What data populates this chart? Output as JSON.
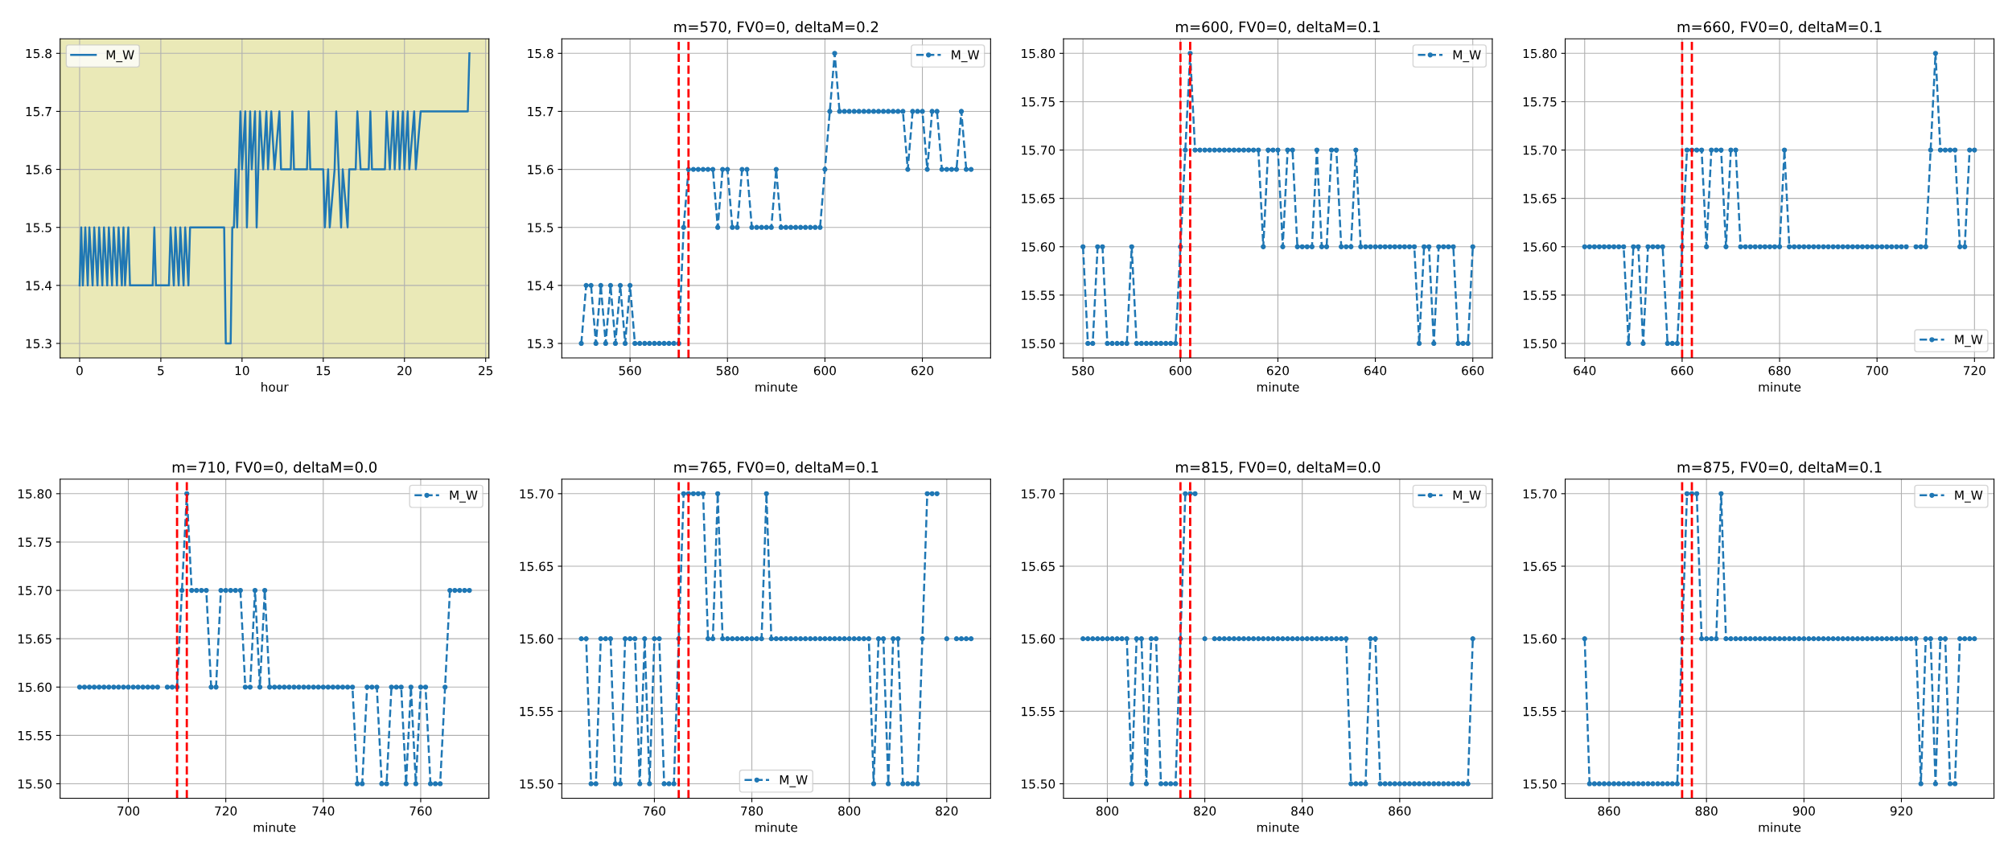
{
  "chart_data": [
    {
      "type": "line",
      "xlabel": "hour",
      "xlim": [
        -1.2,
        25.2
      ],
      "xticks": [
        0,
        5,
        10,
        15,
        20,
        25
      ],
      "ylim": [
        15.275,
        15.825
      ],
      "yticks": [
        15.3,
        15.4,
        15.5,
        15.6,
        15.7,
        15.8
      ],
      "grid": true,
      "legend": "top left",
      "marker": "none",
      "line_style": "solid",
      "x": [
        0,
        0.1,
        0.2,
        0.35,
        0.5,
        0.6,
        0.8,
        0.9,
        1.1,
        1.2,
        1.4,
        1.5,
        1.7,
        1.8,
        2.0,
        2.1,
        2.3,
        2.4,
        2.6,
        2.7,
        2.8,
        3.0,
        3.1,
        4.5,
        4.6,
        4.7,
        5.5,
        5.6,
        5.8,
        5.9,
        6.1,
        6.2,
        6.4,
        6.5,
        6.7,
        6.8,
        8.9,
        9.0,
        9.3,
        9.4,
        9.5,
        9.6,
        9.7,
        9.8,
        9.9,
        10.0,
        10.2,
        10.3,
        10.5,
        10.6,
        10.8,
        10.9,
        11.1,
        11.3,
        11.5,
        11.6,
        11.8,
        12.0,
        12.3,
        12.4,
        13.0,
        13.1,
        13.2,
        14.0,
        14.1,
        14.2,
        15.0,
        15.1,
        15.3,
        15.4,
        15.7,
        15.8,
        16.1,
        16.2,
        16.5,
        16.6,
        17.0,
        17.1,
        17.3,
        17.8,
        17.9,
        18.0,
        18.8,
        18.9,
        19.1,
        19.3,
        19.4,
        19.6,
        19.7,
        19.9,
        20.0,
        20.2,
        20.3,
        20.6,
        20.7,
        21.0,
        23.9,
        24.0
      ],
      "series": [
        {
          "name": "M_W",
          "color": "#1f77b4",
          "values": [
            15.4,
            15.5,
            15.4,
            15.5,
            15.4,
            15.5,
            15.4,
            15.5,
            15.4,
            15.5,
            15.4,
            15.5,
            15.4,
            15.5,
            15.4,
            15.5,
            15.4,
            15.5,
            15.4,
            15.5,
            15.4,
            15.5,
            15.4,
            15.4,
            15.5,
            15.4,
            15.4,
            15.5,
            15.4,
            15.5,
            15.4,
            15.5,
            15.4,
            15.5,
            15.4,
            15.5,
            15.5,
            15.3,
            15.3,
            15.5,
            15.5,
            15.6,
            15.5,
            15.6,
            15.7,
            15.6,
            15.7,
            15.5,
            15.7,
            15.6,
            15.7,
            15.5,
            15.7,
            15.6,
            15.7,
            15.6,
            15.7,
            15.6,
            15.7,
            15.6,
            15.6,
            15.7,
            15.6,
            15.6,
            15.7,
            15.6,
            15.6,
            15.5,
            15.6,
            15.5,
            15.6,
            15.7,
            15.5,
            15.6,
            15.5,
            15.6,
            15.6,
            15.7,
            15.6,
            15.6,
            15.7,
            15.6,
            15.6,
            15.7,
            15.6,
            15.7,
            15.6,
            15.7,
            15.6,
            15.7,
            15.6,
            15.7,
            15.6,
            15.7,
            15.6,
            15.7,
            15.7,
            15.8
          ]
        }
      ]
    },
    {
      "type": "line",
      "title": "m=570, FV0=0, deltaM=0.2",
      "xlabel": "minute",
      "xlim": [
        546,
        634
      ],
      "xticks": [
        560,
        580,
        600,
        620
      ],
      "ylim": [
        15.275,
        15.825
      ],
      "yticks": [
        15.3,
        15.4,
        15.5,
        15.6,
        15.7,
        15.8
      ],
      "grid": true,
      "legend": "top right",
      "marker": "circle",
      "line_style": "dashed",
      "ref_lines": [
        {
          "axis": "x",
          "value": 570,
          "color": "#ff0000",
          "line_style": "dashed"
        },
        {
          "axis": "x",
          "value": 572,
          "color": "#ff0000",
          "line_style": "dashed"
        }
      ],
      "x": [
        550,
        551,
        552,
        553,
        554,
        555,
        556,
        557,
        558,
        559,
        560,
        561,
        562,
        563,
        564,
        565,
        566,
        567,
        568,
        569,
        570,
        571,
        572,
        573,
        574,
        575,
        576,
        577,
        578,
        579,
        580,
        581,
        582,
        583,
        584,
        585,
        586,
        587,
        588,
        589,
        590,
        591,
        592,
        593,
        594,
        595,
        596,
        597,
        598,
        599,
        600,
        601,
        602,
        603,
        604,
        605,
        606,
        607,
        608,
        609,
        610,
        611,
        612,
        613,
        614,
        615,
        616,
        617,
        618,
        619,
        620,
        621,
        622,
        623,
        624,
        625,
        626,
        627,
        628,
        629,
        630
      ],
      "series": [
        {
          "name": "M_W",
          "color": "#1f77b4",
          "values": [
            15.3,
            15.4,
            15.4,
            15.3,
            15.4,
            15.3,
            15.4,
            15.3,
            15.4,
            15.3,
            15.4,
            15.3,
            15.3,
            15.3,
            15.3,
            15.3,
            15.3,
            15.3,
            15.3,
            15.3,
            15.3,
            15.5,
            15.6,
            15.6,
            15.6,
            15.6,
            15.6,
            15.6,
            15.5,
            15.6,
            15.6,
            15.5,
            15.5,
            15.6,
            15.6,
            15.5,
            15.5,
            15.5,
            15.5,
            15.5,
            15.6,
            15.5,
            15.5,
            15.5,
            15.5,
            15.5,
            15.5,
            15.5,
            15.5,
            15.5,
            15.6,
            15.7,
            15.8,
            15.7,
            15.7,
            15.7,
            15.7,
            15.7,
            15.7,
            15.7,
            15.7,
            15.7,
            15.7,
            15.7,
            15.7,
            15.7,
            15.7,
            15.6,
            15.7,
            15.7,
            15.7,
            15.6,
            15.7,
            15.7,
            15.6,
            15.6,
            15.6,
            15.6,
            15.7,
            15.6,
            15.6
          ]
        }
      ]
    },
    {
      "type": "line",
      "title": "m=600, FV0=0, deltaM=0.1",
      "xlabel": "minute",
      "xlim": [
        576,
        664
      ],
      "xticks": [
        580,
        600,
        620,
        640,
        660
      ],
      "ylim": [
        15.485,
        15.815
      ],
      "yticks": [
        {
          "value": 15.5,
          "label": "15.50"
        },
        {
          "value": 15.55,
          "label": "15.55"
        },
        {
          "value": 15.6,
          "label": "15.60"
        },
        {
          "value": 15.65,
          "label": "15.65"
        },
        {
          "value": 15.7,
          "label": "15.70"
        },
        {
          "value": 15.75,
          "label": "15.75"
        },
        {
          "value": 15.8,
          "label": "15.80"
        }
      ],
      "grid": true,
      "legend": "top right",
      "marker": "circle",
      "line_style": "dashed",
      "ref_lines": [
        {
          "axis": "x",
          "value": 600,
          "color": "#ff0000",
          "line_style": "dashed"
        },
        {
          "axis": "x",
          "value": 602,
          "color": "#ff0000",
          "line_style": "dashed"
        }
      ],
      "x": [
        580,
        581,
        582,
        583,
        584,
        585,
        586,
        587,
        588,
        589,
        590,
        591,
        592,
        593,
        594,
        595,
        596,
        597,
        598,
        599,
        600,
        601,
        602,
        603,
        604,
        605,
        606,
        607,
        608,
        609,
        610,
        611,
        612,
        613,
        614,
        615,
        616,
        617,
        618,
        619,
        620,
        621,
        622,
        623,
        624,
        625,
        626,
        627,
        628,
        629,
        630,
        631,
        632,
        633,
        634,
        635,
        636,
        637,
        638,
        639,
        640,
        641,
        642,
        643,
        644,
        645,
        646,
        647,
        648,
        649,
        650,
        651,
        652,
        653,
        654,
        655,
        656,
        657,
        658,
        659,
        660
      ],
      "series": [
        {
          "name": "M_W",
          "color": "#1f77b4",
          "values": [
            15.6,
            15.5,
            15.5,
            15.6,
            15.6,
            15.5,
            15.5,
            15.5,
            15.5,
            15.5,
            15.6,
            15.5,
            15.5,
            15.5,
            15.5,
            15.5,
            15.5,
            15.5,
            15.5,
            15.5,
            15.6,
            15.7,
            15.8,
            15.7,
            15.7,
            15.7,
            15.7,
            15.7,
            15.7,
            15.7,
            15.7,
            15.7,
            15.7,
            15.7,
            15.7,
            15.7,
            15.7,
            15.6,
            15.7,
            15.7,
            15.7,
            15.6,
            15.7,
            15.7,
            15.6,
            15.6,
            15.6,
            15.6,
            15.7,
            15.6,
            15.6,
            15.7,
            15.7,
            15.6,
            15.6,
            15.6,
            15.7,
            15.6,
            15.6,
            15.6,
            15.6,
            15.6,
            15.6,
            15.6,
            15.6,
            15.6,
            15.6,
            15.6,
            15.6,
            15.5,
            15.6,
            15.6,
            15.5,
            15.6,
            15.6,
            15.6,
            15.6,
            15.5,
            15.5,
            15.5,
            15.6
          ]
        }
      ]
    },
    {
      "type": "line",
      "title": "m=660, FV0=0, deltaM=0.1",
      "xlabel": "minute",
      "xlim": [
        636,
        724
      ],
      "xticks": [
        640,
        660,
        680,
        700,
        720
      ],
      "ylim": [
        15.485,
        15.815
      ],
      "yticks": [
        {
          "value": 15.5,
          "label": "15.50"
        },
        {
          "value": 15.55,
          "label": "15.55"
        },
        {
          "value": 15.6,
          "label": "15.60"
        },
        {
          "value": 15.65,
          "label": "15.65"
        },
        {
          "value": 15.7,
          "label": "15.70"
        },
        {
          "value": 15.75,
          "label": "15.75"
        },
        {
          "value": 15.8,
          "label": "15.80"
        }
      ],
      "grid": true,
      "legend": "bottom right",
      "marker": "circle",
      "line_style": "dashed",
      "ref_lines": [
        {
          "axis": "x",
          "value": 660,
          "color": "#ff0000",
          "line_style": "dashed"
        },
        {
          "axis": "x",
          "value": 662,
          "color": "#ff0000",
          "line_style": "dashed"
        }
      ],
      "x": [
        640,
        641,
        642,
        643,
        644,
        645,
        646,
        647,
        648,
        649,
        650,
        651,
        652,
        653,
        654,
        655,
        656,
        657,
        658,
        659,
        660,
        661,
        662,
        663,
        664,
        665,
        666,
        667,
        668,
        669,
        670,
        671,
        672,
        673,
        674,
        675,
        676,
        677,
        678,
        679,
        680,
        681,
        682,
        683,
        684,
        685,
        686,
        687,
        688,
        689,
        690,
        691,
        692,
        693,
        694,
        695,
        696,
        697,
        698,
        699,
        700,
        701,
        702,
        703,
        704,
        705,
        706,
        707,
        708,
        709,
        710,
        711,
        712,
        713,
        714,
        715,
        716,
        717,
        718,
        719,
        720
      ],
      "series": [
        {
          "name": "M_W",
          "color": "#1f77b4",
          "values": [
            15.6,
            15.6,
            15.6,
            15.6,
            15.6,
            15.6,
            15.6,
            15.6,
            15.6,
            15.5,
            15.6,
            15.6,
            15.5,
            15.6,
            15.6,
            15.6,
            15.6,
            15.5,
            15.5,
            15.5,
            15.6,
            15.7,
            15.7,
            15.7,
            15.7,
            15.6,
            15.7,
            15.7,
            15.7,
            15.6,
            15.7,
            15.7,
            15.6,
            15.6,
            15.6,
            15.6,
            15.6,
            15.6,
            15.6,
            15.6,
            15.6,
            15.7,
            15.6,
            15.6,
            15.6,
            15.6,
            15.6,
            15.6,
            15.6,
            15.6,
            15.6,
            15.6,
            15.6,
            15.6,
            15.6,
            15.6,
            15.6,
            15.6,
            15.6,
            15.6,
            15.6,
            15.6,
            15.6,
            15.6,
            15.6,
            15.6,
            15.6,
            null,
            15.6,
            15.6,
            15.6,
            15.7,
            15.8,
            15.7,
            15.7,
            15.7,
            15.7,
            15.6,
            15.6,
            15.7,
            15.7
          ]
        }
      ]
    },
    {
      "type": "line",
      "title": "m=710, FV0=0, deltaM=0.0",
      "xlabel": "minute",
      "xlim": [
        686,
        774
      ],
      "xticks": [
        700,
        720,
        740,
        760
      ],
      "ylim": [
        15.485,
        15.815
      ],
      "yticks": [
        {
          "value": 15.5,
          "label": "15.50"
        },
        {
          "value": 15.55,
          "label": "15.55"
        },
        {
          "value": 15.6,
          "label": "15.60"
        },
        {
          "value": 15.65,
          "label": "15.65"
        },
        {
          "value": 15.7,
          "label": "15.70"
        },
        {
          "value": 15.75,
          "label": "15.75"
        },
        {
          "value": 15.8,
          "label": "15.80"
        }
      ],
      "grid": true,
      "legend": "top right",
      "marker": "circle",
      "line_style": "dashed",
      "ref_lines": [
        {
          "axis": "x",
          "value": 710,
          "color": "#ff0000",
          "line_style": "dashed"
        },
        {
          "axis": "x",
          "value": 712,
          "color": "#ff0000",
          "line_style": "dashed"
        }
      ],
      "x": [
        690,
        691,
        692,
        693,
        694,
        695,
        696,
        697,
        698,
        699,
        700,
        701,
        702,
        703,
        704,
        705,
        706,
        707,
        708,
        709,
        710,
        711,
        712,
        713,
        714,
        715,
        716,
        717,
        718,
        719,
        720,
        721,
        722,
        723,
        724,
        725,
        726,
        727,
        728,
        729,
        730,
        731,
        732,
        733,
        734,
        735,
        736,
        737,
        738,
        739,
        740,
        741,
        742,
        743,
        744,
        745,
        746,
        747,
        748,
        749,
        750,
        751,
        752,
        753,
        754,
        755,
        756,
        757,
        758,
        759,
        760,
        761,
        762,
        763,
        764,
        765,
        766,
        767,
        768,
        769,
        770
      ],
      "series": [
        {
          "name": "M_W",
          "color": "#1f77b4",
          "values": [
            15.6,
            15.6,
            15.6,
            15.6,
            15.6,
            15.6,
            15.6,
            15.6,
            15.6,
            15.6,
            15.6,
            15.6,
            15.6,
            15.6,
            15.6,
            15.6,
            15.6,
            null,
            15.6,
            15.6,
            15.6,
            15.7,
            15.8,
            15.7,
            15.7,
            15.7,
            15.7,
            15.6,
            15.6,
            15.7,
            15.7,
            15.7,
            15.7,
            15.7,
            15.6,
            15.6,
            15.7,
            15.6,
            15.7,
            15.6,
            15.6,
            15.6,
            15.6,
            15.6,
            15.6,
            15.6,
            15.6,
            15.6,
            15.6,
            15.6,
            15.6,
            15.6,
            15.6,
            15.6,
            15.6,
            15.6,
            15.6,
            15.5,
            15.5,
            15.6,
            15.6,
            15.6,
            15.5,
            15.5,
            15.6,
            15.6,
            15.6,
            15.5,
            15.6,
            15.5,
            15.6,
            15.6,
            15.5,
            15.5,
            15.5,
            15.6,
            15.7,
            15.7,
            15.7,
            15.7,
            15.7
          ]
        }
      ]
    },
    {
      "type": "line",
      "title": "m=765, FV0=0, deltaM=0.1",
      "xlabel": "minute",
      "xlim": [
        741,
        829
      ],
      "xticks": [
        760,
        780,
        800,
        820
      ],
      "ylim": [
        15.49,
        15.71
      ],
      "yticks": [
        {
          "value": 15.5,
          "label": "15.50"
        },
        {
          "value": 15.55,
          "label": "15.55"
        },
        {
          "value": 15.6,
          "label": "15.60"
        },
        {
          "value": 15.65,
          "label": "15.65"
        },
        {
          "value": 15.7,
          "label": "15.70"
        }
      ],
      "grid": true,
      "legend": "bottom",
      "marker": "circle",
      "line_style": "dashed",
      "ref_lines": [
        {
          "axis": "x",
          "value": 765,
          "color": "#ff0000",
          "line_style": "dashed"
        },
        {
          "axis": "x",
          "value": 767,
          "color": "#ff0000",
          "line_style": "dashed"
        }
      ],
      "x": [
        745,
        746,
        747,
        748,
        749,
        750,
        751,
        752,
        753,
        754,
        755,
        756,
        757,
        758,
        759,
        760,
        761,
        762,
        763,
        764,
        765,
        766,
        767,
        768,
        769,
        770,
        771,
        772,
        773,
        774,
        775,
        776,
        777,
        778,
        779,
        780,
        781,
        782,
        783,
        784,
        785,
        786,
        787,
        788,
        789,
        790,
        791,
        792,
        793,
        794,
        795,
        796,
        797,
        798,
        799,
        800,
        801,
        802,
        803,
        804,
        805,
        806,
        807,
        808,
        809,
        810,
        811,
        812,
        813,
        814,
        815,
        816,
        817,
        818,
        819,
        820,
        821,
        822,
        823,
        824,
        825
      ],
      "series": [
        {
          "name": "M_W",
          "color": "#1f77b4",
          "values": [
            15.6,
            15.6,
            15.5,
            15.5,
            15.6,
            15.6,
            15.6,
            15.5,
            15.5,
            15.6,
            15.6,
            15.6,
            15.5,
            15.6,
            15.5,
            15.6,
            15.6,
            15.5,
            15.5,
            15.5,
            15.6,
            15.7,
            15.7,
            15.7,
            15.7,
            15.7,
            15.6,
            15.6,
            15.7,
            15.6,
            15.6,
            15.6,
            15.6,
            15.6,
            15.6,
            15.6,
            15.6,
            15.6,
            15.7,
            15.6,
            15.6,
            15.6,
            15.6,
            15.6,
            15.6,
            15.6,
            15.6,
            15.6,
            15.6,
            15.6,
            15.6,
            15.6,
            15.6,
            15.6,
            15.6,
            15.6,
            15.6,
            15.6,
            15.6,
            15.6,
            15.5,
            15.6,
            15.6,
            15.5,
            15.6,
            15.6,
            15.5,
            15.5,
            15.5,
            15.5,
            15.6,
            15.7,
            15.7,
            15.7,
            null,
            15.6,
            null,
            15.6,
            15.6,
            15.6,
            15.6
          ]
        }
      ]
    },
    {
      "type": "line",
      "title": "m=815, FV0=0, deltaM=0.0",
      "xlabel": "minute",
      "xlim": [
        791,
        879
      ],
      "xticks": [
        800,
        820,
        840,
        860
      ],
      "ylim": [
        15.49,
        15.71
      ],
      "yticks": [
        {
          "value": 15.5,
          "label": "15.50"
        },
        {
          "value": 15.55,
          "label": "15.55"
        },
        {
          "value": 15.6,
          "label": "15.60"
        },
        {
          "value": 15.65,
          "label": "15.65"
        },
        {
          "value": 15.7,
          "label": "15.70"
        }
      ],
      "grid": true,
      "legend": "top right",
      "marker": "circle",
      "line_style": "dashed",
      "ref_lines": [
        {
          "axis": "x",
          "value": 815,
          "color": "#ff0000",
          "line_style": "dashed"
        },
        {
          "axis": "x",
          "value": 817,
          "color": "#ff0000",
          "line_style": "dashed"
        }
      ],
      "x": [
        795,
        796,
        797,
        798,
        799,
        800,
        801,
        802,
        803,
        804,
        805,
        806,
        807,
        808,
        809,
        810,
        811,
        812,
        813,
        814,
        815,
        816,
        817,
        818,
        819,
        820,
        821,
        822,
        823,
        824,
        825,
        826,
        827,
        828,
        829,
        830,
        831,
        832,
        833,
        834,
        835,
        836,
        837,
        838,
        839,
        840,
        841,
        842,
        843,
        844,
        845,
        846,
        847,
        848,
        849,
        850,
        851,
        852,
        853,
        854,
        855,
        856,
        857,
        858,
        859,
        860,
        861,
        862,
        863,
        864,
        865,
        866,
        867,
        868,
        869,
        870,
        871,
        872,
        873,
        874,
        875
      ],
      "series": [
        {
          "name": "M_W",
          "color": "#1f77b4",
          "values": [
            15.6,
            15.6,
            15.6,
            15.6,
            15.6,
            15.6,
            15.6,
            15.6,
            15.6,
            15.6,
            15.5,
            15.6,
            15.6,
            15.5,
            15.6,
            15.6,
            15.5,
            15.5,
            15.5,
            15.5,
            15.6,
            15.7,
            15.7,
            15.7,
            null,
            15.6,
            null,
            15.6,
            15.6,
            15.6,
            15.6,
            15.6,
            15.6,
            15.6,
            15.6,
            15.6,
            15.6,
            15.6,
            15.6,
            15.6,
            15.6,
            15.6,
            15.6,
            15.6,
            15.6,
            15.6,
            15.6,
            15.6,
            15.6,
            15.6,
            15.6,
            15.6,
            15.6,
            15.6,
            15.6,
            15.5,
            15.5,
            15.5,
            15.5,
            15.6,
            15.6,
            15.5,
            15.5,
            15.5,
            15.5,
            15.5,
            15.5,
            15.5,
            15.5,
            15.5,
            15.5,
            15.5,
            15.5,
            15.5,
            15.5,
            15.5,
            15.5,
            15.5,
            15.5,
            15.5,
            15.6
          ]
        }
      ]
    },
    {
      "type": "line",
      "title": "m=875, FV0=0, deltaM=0.1",
      "xlabel": "minute",
      "xlim": [
        851,
        939
      ],
      "xticks": [
        860,
        880,
        900,
        920
      ],
      "ylim": [
        15.49,
        15.71
      ],
      "yticks": [
        {
          "value": 15.5,
          "label": "15.50"
        },
        {
          "value": 15.55,
          "label": "15.55"
        },
        {
          "value": 15.6,
          "label": "15.60"
        },
        {
          "value": 15.65,
          "label": "15.65"
        },
        {
          "value": 15.7,
          "label": "15.70"
        }
      ],
      "grid": true,
      "legend": "top right",
      "marker": "circle",
      "line_style": "dashed",
      "ref_lines": [
        {
          "axis": "x",
          "value": 875,
          "color": "#ff0000",
          "line_style": "dashed"
        },
        {
          "axis": "x",
          "value": 877,
          "color": "#ff0000",
          "line_style": "dashed"
        }
      ],
      "x": [
        855,
        856,
        857,
        858,
        859,
        860,
        861,
        862,
        863,
        864,
        865,
        866,
        867,
        868,
        869,
        870,
        871,
        872,
        873,
        874,
        875,
        876,
        877,
        878,
        879,
        880,
        881,
        882,
        883,
        884,
        885,
        886,
        887,
        888,
        889,
        890,
        891,
        892,
        893,
        894,
        895,
        896,
        897,
        898,
        899,
        900,
        901,
        902,
        903,
        904,
        905,
        906,
        907,
        908,
        909,
        910,
        911,
        912,
        913,
        914,
        915,
        916,
        917,
        918,
        919,
        920,
        921,
        922,
        923,
        924,
        925,
        926,
        927,
        928,
        929,
        930,
        931,
        932,
        933,
        934,
        935
      ],
      "series": [
        {
          "name": "M_W",
          "color": "#1f77b4",
          "values": [
            15.6,
            15.5,
            15.5,
            15.5,
            15.5,
            15.5,
            15.5,
            15.5,
            15.5,
            15.5,
            15.5,
            15.5,
            15.5,
            15.5,
            15.5,
            15.5,
            15.5,
            15.5,
            15.5,
            15.5,
            15.6,
            15.7,
            15.7,
            15.7,
            15.6,
            15.6,
            15.6,
            15.6,
            15.7,
            15.6,
            15.6,
            15.6,
            15.6,
            15.6,
            15.6,
            15.6,
            15.6,
            15.6,
            15.6,
            15.6,
            15.6,
            15.6,
            15.6,
            15.6,
            15.6,
            15.6,
            15.6,
            15.6,
            15.6,
            15.6,
            15.6,
            15.6,
            15.6,
            15.6,
            15.6,
            15.6,
            15.6,
            15.6,
            15.6,
            15.6,
            15.6,
            15.6,
            15.6,
            15.6,
            15.6,
            15.6,
            15.6,
            15.6,
            15.6,
            15.5,
            15.6,
            15.6,
            15.5,
            15.6,
            15.6,
            15.5,
            15.5,
            15.6,
            15.6,
            15.6,
            15.6
          ]
        }
      ]
    }
  ]
}
